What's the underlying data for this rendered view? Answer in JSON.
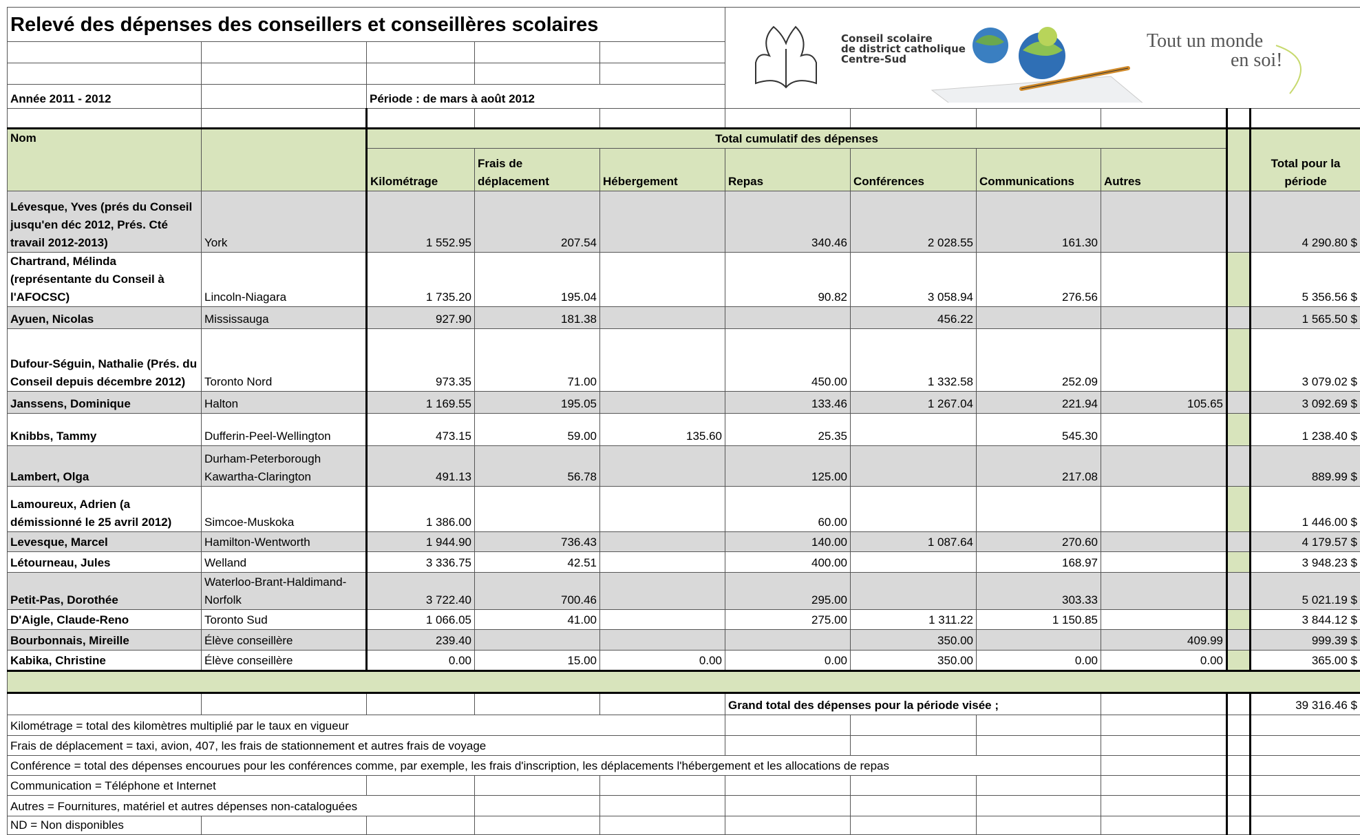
{
  "header": {
    "title": "Relevé des dépenses des conseillers et conseillères scolaires",
    "year": "Année 2011 - 2012",
    "period": "Période : de mars à août 2012"
  },
  "logo": {
    "org_lines": [
      "Conseil scolaire",
      "de district catholique",
      "Centre-Sud"
    ],
    "slogan_lines": [
      "Tout un monde",
      "en soi!"
    ]
  },
  "columns": {
    "name": "Nom",
    "group": "Total cumulatif des dépenses",
    "items": [
      "Kilométrage",
      "Frais de déplacement",
      "Hébergement",
      "Repas",
      "Conférences",
      "Communications",
      "Autres"
    ],
    "total": "Total pour la période"
  },
  "rows": [
    [
      "Lévesque, Yves (prés du Conseil jusqu'en déc 2012, Prés. Cté travail 2012-2013)",
      "York",
      "1 552.95",
      "207.54",
      null,
      "340.46",
      "2 028.55",
      "161.30",
      null,
      "4 290.80 $"
    ],
    [
      "Chartrand, Mélinda (représentante du Conseil à l'AFOCSC)",
      "Lincoln-Niagara",
      "1 735.20",
      "195.04",
      null,
      "90.82",
      "3 058.94",
      "276.56",
      null,
      "5 356.56 $"
    ],
    [
      "Ayuen, Nicolas",
      "Mississauga",
      "927.90",
      "181.38",
      null,
      null,
      "456.22",
      null,
      null,
      "1 565.50 $"
    ],
    [
      "Dufour-Séguin, Nathalie (Prés. du Conseil depuis décembre 2012)",
      "Toronto Nord",
      "973.35",
      "71.00",
      null,
      "450.00",
      "1 332.58",
      "252.09",
      null,
      "3 079.02 $"
    ],
    [
      "Janssens, Dominique",
      "Halton",
      "1 169.55",
      "195.05",
      null,
      "133.46",
      "1 267.04",
      "221.94",
      "105.65",
      "3 092.69 $"
    ],
    [
      "Knibbs, Tammy",
      "Dufferin-Peel-Wellington",
      "473.15",
      "59.00",
      "135.60",
      "25.35",
      null,
      "545.30",
      null,
      "1 238.40 $"
    ],
    [
      "Lambert, Olga",
      "Durham-Peterborough Kawartha-Clarington",
      "491.13",
      "56.78",
      null,
      "125.00",
      null,
      "217.08",
      null,
      "889.99 $"
    ],
    [
      "Lamoureux, Adrien (a démissionné le 25 avril 2012)",
      "Simcoe-Muskoka",
      "1 386.00",
      null,
      null,
      "60.00",
      null,
      null,
      null,
      "1 446.00 $"
    ],
    [
      "Levesque, Marcel",
      "Hamilton-Wentworth",
      "1 944.90",
      "736.43",
      null,
      "140.00",
      "1 087.64",
      "270.60",
      null,
      "4 179.57 $"
    ],
    [
      "Létourneau, Jules",
      "Welland",
      "3 336.75",
      "42.51",
      null,
      "400.00",
      null,
      "168.97",
      null,
      "3 948.23 $"
    ],
    [
      "Petit-Pas, Dorothée",
      "Waterloo-Brant-Haldimand-Norfolk",
      "3 722.40",
      "700.46",
      null,
      "295.00",
      null,
      "303.33",
      null,
      "5 021.19 $"
    ],
    [
      "D'Aigle, Claude-Reno",
      "Toronto Sud",
      "1 066.05",
      "41.00",
      null,
      "275.00",
      "1 311.22",
      "1 150.85",
      null,
      "3 844.12 $"
    ],
    [
      "Bourbonnais, Mireille",
      "Élève conseillère",
      "239.40",
      null,
      null,
      null,
      "350.00",
      null,
      "409.99",
      "999.39 $"
    ],
    [
      "Kabika, Christine",
      "Élève conseillère",
      "0.00",
      "15.00",
      "0.00",
      "0.00",
      "350.00",
      "0.00",
      "0.00",
      "365.00 $"
    ]
  ],
  "grand_total": {
    "label": "Grand total des dépenses pour la période visée ;",
    "value": "39 316.46 $"
  },
  "notes": [
    "Kilométrage = total des kilomètres multiplié par le taux en vigueur",
    "Frais de déplacement = taxi, avion, 407, les frais de stationnement et autres frais de voyage",
    "Conférence = total des dépenses encourues pour les conférences comme, par exemple, les frais d'inscription, les déplacements l'hébergement et les allocations de repas",
    "Communication = Téléphone et Internet",
    "Autres = Fournitures, matériel et autres dépenses non-cataloguées",
    "ND = Non disponibles"
  ]
}
